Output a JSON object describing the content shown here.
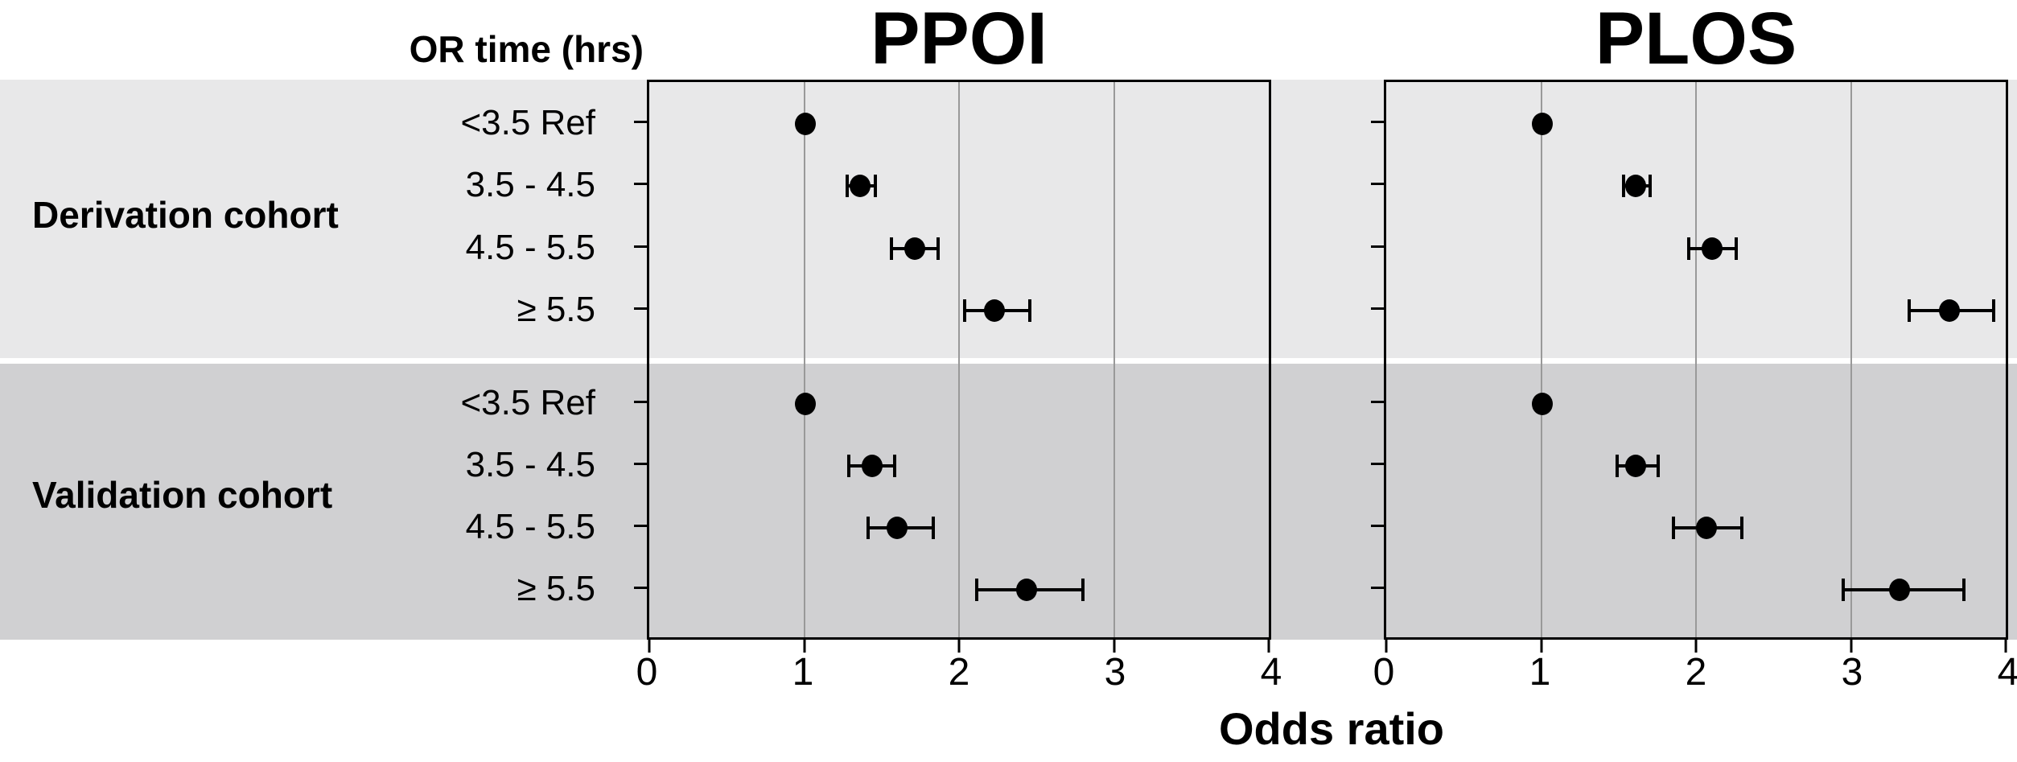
{
  "colors": {
    "band_light": "#e8e8e9",
    "band_dark": "#d0d0d2",
    "marker": "#000000",
    "gridline": "#999999",
    "frame": "#000000"
  },
  "chart_data": {
    "type": "scatter",
    "subtype": "forest-plot",
    "row_axis_title": "OR time (hrs)",
    "xlabel": "Odds ratio",
    "xlim": [
      0,
      4
    ],
    "x_ticks": [
      "0",
      "1",
      "2",
      "3",
      "4"
    ],
    "grid": "vertical gridlines at 1, 2 and 3; shaded horizontal band per cohort",
    "legend_position": "none",
    "groups": [
      "Derivation cohort",
      "Validation cohort"
    ],
    "categories": [
      "<3.5 Ref",
      "3.5 - 4.5",
      "4.5 - 5.5",
      "≥ 5.5"
    ],
    "panels": [
      {
        "title": "PPOI",
        "series": [
          {
            "group": "Derivation cohort",
            "points": [
              {
                "category": "<3.5 Ref",
                "or": 1.0,
                "ci_low": null,
                "ci_high": null
              },
              {
                "category": "3.5 - 4.5",
                "or": 1.35,
                "ci_low": 1.27,
                "ci_high": 1.45
              },
              {
                "category": "4.5 - 5.5",
                "or": 1.7,
                "ci_low": 1.55,
                "ci_high": 1.85
              },
              {
                "category": "≥ 5.5",
                "or": 2.21,
                "ci_low": 2.02,
                "ci_high": 2.44
              }
            ]
          },
          {
            "group": "Validation cohort",
            "points": [
              {
                "category": "<3.5 Ref",
                "or": 1.0,
                "ci_low": null,
                "ci_high": null
              },
              {
                "category": "3.5 - 4.5",
                "or": 1.43,
                "ci_low": 1.28,
                "ci_high": 1.57
              },
              {
                "category": "4.5 - 5.5",
                "or": 1.59,
                "ci_low": 1.4,
                "ci_high": 1.82
              },
              {
                "category": "≥ 5.5",
                "or": 2.42,
                "ci_low": 2.1,
                "ci_high": 2.78
              }
            ]
          }
        ]
      },
      {
        "title": "PLOS",
        "series": [
          {
            "group": "Derivation cohort",
            "points": [
              {
                "category": "<3.5 Ref",
                "or": 1.0,
                "ci_low": null,
                "ci_high": null
              },
              {
                "category": "3.5 - 4.5",
                "or": 1.6,
                "ci_low": 1.52,
                "ci_high": 1.69
              },
              {
                "category": "4.5 - 5.5",
                "or": 2.09,
                "ci_low": 1.94,
                "ci_high": 2.24
              },
              {
                "category": "≥ 5.5",
                "or": 3.61,
                "ci_low": 3.35,
                "ci_high": 3.89
              }
            ]
          },
          {
            "group": "Validation cohort",
            "points": [
              {
                "category": "<3.5 Ref",
                "or": 1.0,
                "ci_low": null,
                "ci_high": null
              },
              {
                "category": "3.5 - 4.5",
                "or": 1.6,
                "ci_low": 1.48,
                "ci_high": 1.74
              },
              {
                "category": "4.5 - 5.5",
                "or": 2.05,
                "ci_low": 1.84,
                "ci_high": 2.28
              },
              {
                "category": "≥ 5.5",
                "or": 3.29,
                "ci_low": 2.93,
                "ci_high": 3.7
              }
            ]
          }
        ]
      }
    ]
  }
}
